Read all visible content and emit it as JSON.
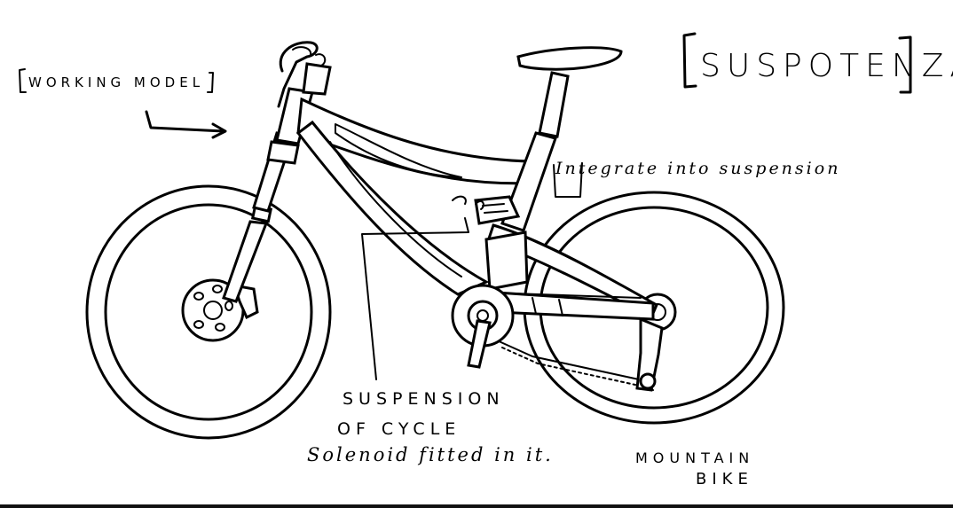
{
  "title": "SUSPOTENZA",
  "labels": {
    "working_model": "WORKING MODEL",
    "integrate": "Integrate into suspension",
    "suspension_line1": "SUSPENSION",
    "suspension_line2": "OF CYCLE",
    "solenoid": "Solenoid fitted in it.",
    "mountain": "MOUNTAIN",
    "bike": "BIKE"
  },
  "icons": {
    "bracket_left": "[",
    "bracket_right": "]"
  }
}
